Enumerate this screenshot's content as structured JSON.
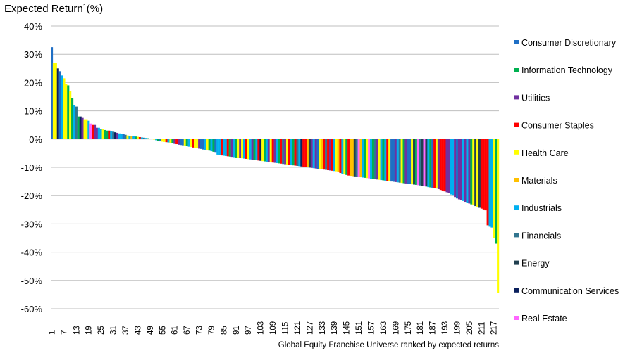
{
  "chart_data": {
    "type": "bar",
    "title": "Expected Return",
    "title_superscript": "1",
    "title_unit": "(%)",
    "xlabel": "Global Equity Franchise Universe ranked by expected returns",
    "ylabel": "",
    "ylim": [
      -60,
      40
    ],
    "yticks": [
      40,
      30,
      20,
      10,
      0,
      -10,
      -20,
      -30,
      -40,
      -50,
      -60
    ],
    "ytick_labels": [
      "40%",
      "30%",
      "20%",
      "10%",
      "0%",
      "-10%",
      "-20%",
      "-30%",
      "-40%",
      "-50%",
      "-60%"
    ],
    "xtick_labels": [
      "1",
      "7",
      "13",
      "19",
      "25",
      "31",
      "37",
      "43",
      "49",
      "55",
      "61",
      "67",
      "73",
      "79",
      "85",
      "91",
      "97",
      "103",
      "109",
      "115",
      "121",
      "127",
      "133",
      "139",
      "145",
      "151",
      "157",
      "163",
      "169",
      "175",
      "181",
      "187",
      "193",
      "199",
      "205",
      "211",
      "217"
    ],
    "grid": true,
    "legend_position": "right",
    "legend": [
      {
        "name": "Consumer Discretionary",
        "color": "#1F6FC5"
      },
      {
        "name": "Information Technology",
        "color": "#00B050"
      },
      {
        "name": "Utilities",
        "color": "#7030A0"
      },
      {
        "name": "Consumer Staples",
        "color": "#FF0000"
      },
      {
        "name": "Health Care",
        "color": "#FFFF00"
      },
      {
        "name": "Materials",
        "color": "#FFC000"
      },
      {
        "name": "Industrials",
        "color": "#00B0F0"
      },
      {
        "name": "Financials",
        "color": "#31758F"
      },
      {
        "name": "Energy",
        "color": "#203F4F"
      },
      {
        "name": "Communication Services",
        "color": "#0A1F5C"
      },
      {
        "name": "Real Estate",
        "color": "#FF66FF"
      }
    ],
    "values": [
      32.5,
      27,
      27,
      25,
      24,
      22.5,
      21.5,
      19.5,
      19,
      17,
      14.5,
      12,
      11.5,
      8,
      8,
      7.5,
      7,
      7,
      6.5,
      5.5,
      5,
      5,
      4,
      4,
      3.5,
      3.5,
      3.2,
      3,
      3,
      2.8,
      2.6,
      2.4,
      2.2,
      2,
      1.9,
      1.7,
      1.5,
      1.3,
      1.2,
      1.1,
      1,
      0.9,
      0.8,
      0.7,
      0.6,
      0.5,
      0.4,
      0.3,
      0.2,
      0.1,
      -0.2,
      -0.4,
      -0.6,
      -0.8,
      -0.9,
      -1,
      -1.1,
      -1.2,
      -1.4,
      -1.5,
      -1.7,
      -1.8,
      -2,
      -2.1,
      -2.2,
      -2.4,
      -2.5,
      -2.7,
      -2.8,
      -3,
      -3.1,
      -3.2,
      -3.4,
      -3.5,
      -3.7,
      -3.8,
      -4,
      -4.1,
      -4.3,
      -4.5,
      -4.6,
      -5.5,
      -5.6,
      -5.8,
      -5.9,
      -6,
      -6.1,
      -6.2,
      -6.3,
      -6.4,
      -6.5,
      -6.6,
      -6.7,
      -6.8,
      -6.9,
      -7,
      -7.1,
      -7.2,
      -7.3,
      -7.4,
      -7.5,
      -7.6,
      -7.7,
      -7.8,
      -7.9,
      -8,
      -8.1,
      -8.2,
      -8.3,
      -8.4,
      -8.5,
      -8.6,
      -8.7,
      -8.8,
      -8.9,
      -9,
      -9.1,
      -9.2,
      -9.3,
      -9.4,
      -9.5,
      -9.6,
      -9.7,
      -9.8,
      -9.9,
      -10,
      -10.1,
      -10.2,
      -10.3,
      -10.4,
      -10.5,
      -10.6,
      -10.7,
      -10.8,
      -10.9,
      -11,
      -11.1,
      -11.2,
      -11.3,
      -11.4,
      -11.5,
      -12,
      -12.3,
      -12.5,
      -12.7,
      -12.9,
      -13,
      -13.1,
      -13.2,
      -13.3,
      -13.4,
      -13.5,
      -13.6,
      -13.7,
      -13.8,
      -13.9,
      -14,
      -14.1,
      -14.2,
      -14.3,
      -14.4,
      -14.5,
      -14.6,
      -14.7,
      -14.8,
      -14.9,
      -15,
      -15.1,
      -15.2,
      -15.3,
      -15.4,
      -15.5,
      -15.6,
      -15.7,
      -15.8,
      -15.9,
      -16,
      -16.1,
      -16.2,
      -16.3,
      -16.4,
      -16.5,
      -16.6,
      -16.8,
      -17,
      -17.1,
      -17.2,
      -17.3,
      -17.5,
      -17.7,
      -18,
      -18.2,
      -18.5,
      -18.8,
      -19.2,
      -19.6,
      -20,
      -20.5,
      -21,
      -21.3,
      -21.6,
      -21.9,
      -22.2,
      -22.5,
      -22.8,
      -23.1,
      -23.4,
      -23.7,
      -24,
      -24.3,
      -24.6,
      -24.9,
      -25.2,
      -30.5,
      -31,
      -31.3,
      -35,
      -37,
      -54.5
    ],
    "sectors": [
      0,
      4,
      4,
      9,
      0,
      6,
      4,
      4,
      1,
      4,
      1,
      6,
      7,
      1,
      9,
      2,
      4,
      4,
      6,
      10,
      3,
      2,
      2,
      6,
      6,
      4,
      1,
      1,
      3,
      6,
      7,
      9,
      2,
      6,
      6,
      0,
      7,
      4,
      6,
      5,
      6,
      1,
      4,
      3,
      6,
      7,
      6,
      1,
      4,
      1,
      4,
      6,
      1,
      0,
      4,
      4,
      3,
      6,
      4,
      1,
      2,
      3,
      2,
      0,
      0,
      4,
      1,
      6,
      4,
      3,
      4,
      4,
      2,
      0,
      0,
      6,
      4,
      1,
      6,
      1,
      0,
      6,
      6,
      3,
      6,
      6,
      3,
      1,
      2,
      6,
      1,
      4,
      2,
      4,
      6,
      3,
      4,
      6,
      2,
      1,
      6,
      3,
      9,
      4,
      1,
      6,
      2,
      4,
      3,
      2,
      6,
      1,
      3,
      7,
      2,
      4,
      3,
      6,
      1,
      3,
      7,
      6,
      9,
      3,
      3,
      5,
      8,
      2,
      6,
      2,
      0,
      4,
      5,
      3,
      7,
      3,
      2,
      3,
      6,
      4,
      5,
      3,
      6,
      4,
      1,
      3,
      5,
      5,
      8,
      7,
      10,
      5,
      6,
      1,
      4,
      10,
      6,
      1,
      7,
      2,
      4,
      6,
      1,
      6,
      3,
      4,
      0,
      0,
      2,
      6,
      7,
      4,
      1,
      2,
      0,
      0,
      4,
      8,
      1,
      10,
      7,
      8,
      10,
      8,
      6,
      1,
      0,
      3,
      4,
      2,
      3,
      3,
      3,
      2,
      2,
      6,
      6,
      2,
      0,
      2,
      2,
      6,
      2,
      6,
      2,
      1,
      4,
      8,
      4,
      8,
      3,
      3,
      3,
      3,
      6,
      6,
      4,
      1,
      4
    ]
  }
}
